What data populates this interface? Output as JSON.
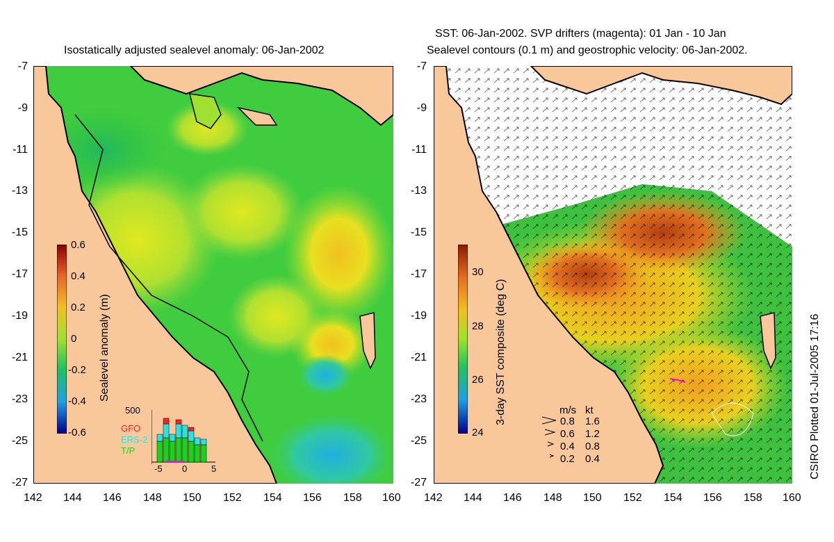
{
  "left_panel": {
    "title": "Isostatically adjusted sealevel anomaly: 06-Jan-2002",
    "colorbar": {
      "label": "Sealevel anomaly (m)",
      "ticks": [
        "0.6",
        "0.4",
        "0.2",
        "0",
        "-0.2",
        "-0.4",
        "-0.6"
      ]
    },
    "inset": {
      "ymax": "500",
      "legend": [
        {
          "name": "GFO",
          "color": "#ff2020"
        },
        {
          "name": "ERS-2",
          "color": "#30e0e0"
        },
        {
          "name": "T/P",
          "color": "#20d020"
        }
      ],
      "xticks": [
        "-5",
        "0",
        "5"
      ]
    }
  },
  "right_panel": {
    "title_line1": "SST: 06-Jan-2002. SVP drifters (magenta): 01 Jan - 10 Jan",
    "title_line2": "Sealevel contours (0.1 m) and geostrophic velocity: 06-Jan-2002.",
    "colorbar": {
      "label": "3-day SST composite (deg C)",
      "ticks": [
        "30",
        "28",
        "26",
        "24"
      ]
    },
    "velocity_key": {
      "headers": [
        "m/s",
        "kt"
      ],
      "rows": [
        {
          "ms": "0.8",
          "kt": "1.6"
        },
        {
          "ms": "0.6",
          "kt": "1.2"
        },
        {
          "ms": "0.4",
          "kt": "0.8"
        },
        {
          "ms": "0.2",
          "kt": "0.4"
        }
      ]
    }
  },
  "axes": {
    "lat_ticks": [
      "-7",
      "-9",
      "-11",
      "-13",
      "-15",
      "-17",
      "-19",
      "-21",
      "-23",
      "-25",
      "-27"
    ],
    "lon_ticks": [
      "142",
      "144",
      "146",
      "148",
      "150",
      "152",
      "154",
      "156",
      "158",
      "160"
    ]
  },
  "credit": "CSIRO Plotted 01-Jul-2005 17:16",
  "colors": {
    "land": "#f9c89a",
    "ocean_base": "#33cc33",
    "no_data": "#ffffff"
  }
}
